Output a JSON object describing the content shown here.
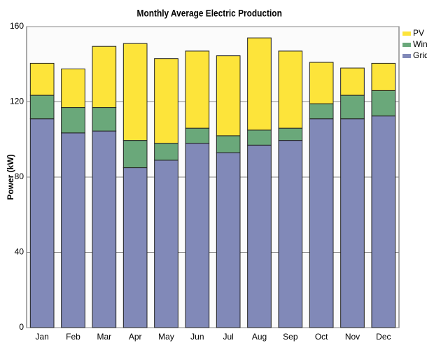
{
  "chart_data": {
    "type": "stacked_bar",
    "title": "Monthly Average Electric Production",
    "y_label": "Power (kW)",
    "categories": [
      "Jan",
      "Feb",
      "Mar",
      "Apr",
      "May",
      "Jun",
      "Jul",
      "Aug",
      "Sep",
      "Oct",
      "Nov",
      "Dec"
    ],
    "series": [
      {
        "name": "Grid",
        "color": "#8189b8",
        "values": [
          111,
          103.5,
          104.5,
          85,
          89,
          98,
          93,
          97,
          99.5,
          111,
          111,
          112.5
        ]
      },
      {
        "name": "Wind",
        "color": "#6aa87a",
        "values": [
          12.5,
          13.5,
          12.5,
          14.5,
          9,
          8,
          9,
          8,
          6.5,
          8,
          12.5,
          13.5
        ]
      },
      {
        "name": "PV",
        "color": "#fde43a",
        "values": [
          17,
          20.5,
          32.5,
          51.5,
          45,
          41,
          42.5,
          49,
          41,
          22,
          14.5,
          14.5
        ]
      }
    ],
    "ylim": [
      0,
      160
    ],
    "yticks": [
      0,
      40,
      80,
      120,
      160
    ],
    "grid": true,
    "legend": "right"
  }
}
